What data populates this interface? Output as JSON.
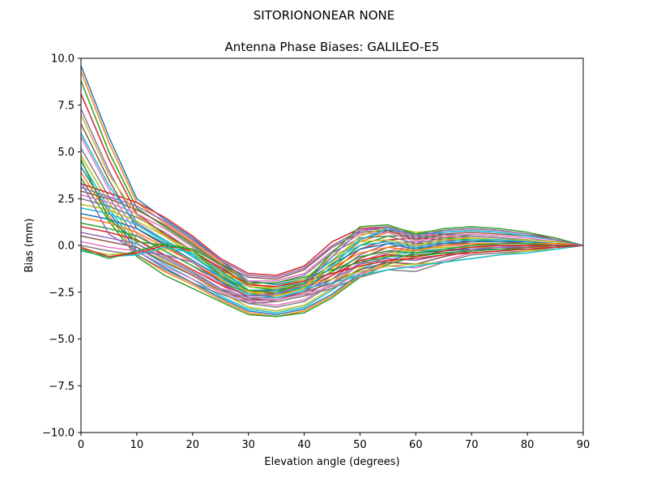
{
  "chart_data": {
    "type": "line",
    "suptitle": "SITORIONONEAR   NONE",
    "title": "Antenna Phase Biases: GALILEO-E5",
    "xlabel": "Elevation angle (degrees)",
    "ylabel": "Bias (mm)",
    "xlim": [
      0,
      90
    ],
    "ylim": [
      -10,
      10
    ],
    "xticks": [
      "0",
      "10",
      "20",
      "30",
      "40",
      "50",
      "60",
      "70",
      "80",
      "90"
    ],
    "yticks": [
      "10.0",
      "7.5",
      "5.0",
      "2.5",
      "0.0",
      "−2.5",
      "−5.0",
      "−7.5",
      "−10.0"
    ],
    "grid": false,
    "legend": "none",
    "x": [
      0,
      5,
      10,
      15,
      20,
      25,
      30,
      35,
      40,
      45,
      50,
      55,
      60,
      65,
      70,
      75,
      80,
      85,
      90
    ],
    "series": [
      {
        "color": "#1f77b4",
        "values": [
          9.6,
          5.8,
          2.5,
          1.4,
          0.4,
          -0.8,
          -1.9,
          -2.1,
          -1.8,
          -0.8,
          0.3,
          0.8,
          0.7,
          0.6,
          0.5,
          0.4,
          0.3,
          0.2,
          0.0
        ]
      },
      {
        "color": "#ff7f0e",
        "values": [
          9.3,
          5.5,
          2.3,
          1.2,
          0.2,
          -0.9,
          -2.0,
          -2.3,
          -2.0,
          -1.0,
          0.2,
          0.7,
          0.6,
          0.5,
          0.4,
          0.3,
          0.2,
          0.1,
          0.0
        ]
      },
      {
        "color": "#2ca02c",
        "values": [
          8.8,
          5.0,
          2.0,
          1.0,
          0.0,
          -1.1,
          -2.2,
          -2.4,
          -2.1,
          -1.2,
          0.0,
          0.5,
          0.5,
          0.4,
          0.3,
          0.2,
          0.2,
          0.1,
          0.0
        ]
      },
      {
        "color": "#d62728",
        "values": [
          8.1,
          4.6,
          1.7,
          0.6,
          -0.3,
          -1.3,
          -2.4,
          -2.6,
          -2.3,
          -1.4,
          -0.2,
          0.3,
          0.4,
          0.3,
          0.2,
          0.2,
          0.1,
          0.1,
          0.0
        ]
      },
      {
        "color": "#9467bd",
        "values": [
          7.3,
          4.0,
          1.2,
          0.3,
          -0.6,
          -1.6,
          -2.6,
          -2.8,
          -2.5,
          -1.6,
          -0.5,
          0.1,
          0.2,
          0.2,
          0.1,
          0.1,
          0.1,
          0.0,
          0.0
        ]
      },
      {
        "color": "#8c564b",
        "values": [
          6.5,
          3.5,
          0.9,
          0.0,
          -0.9,
          -1.9,
          -2.8,
          -3.0,
          -2.7,
          -1.8,
          -0.7,
          -0.1,
          0.1,
          0.1,
          0.1,
          0.0,
          0.0,
          0.0,
          0.0
        ]
      },
      {
        "color": "#e377c2",
        "values": [
          5.8,
          3.0,
          0.6,
          -0.3,
          -1.1,
          -2.1,
          -3.0,
          -3.2,
          -2.9,
          -2.0,
          -0.9,
          -0.3,
          0.0,
          0.0,
          0.0,
          0.0,
          0.0,
          0.0,
          0.0
        ]
      },
      {
        "color": "#7f7f7f",
        "values": [
          5.2,
          2.6,
          0.3,
          -0.6,
          -1.4,
          -2.3,
          -3.1,
          -3.3,
          -3.0,
          -2.1,
          -1.0,
          -0.4,
          -0.1,
          -0.1,
          -0.1,
          -0.1,
          0.0,
          0.0,
          0.0
        ]
      },
      {
        "color": "#bcbd22",
        "values": [
          4.8,
          2.3,
          0.1,
          -0.8,
          -1.6,
          -2.5,
          -3.3,
          -3.5,
          -3.2,
          -2.3,
          -1.2,
          -0.5,
          -0.2,
          -0.1,
          -0.1,
          -0.1,
          -0.1,
          0.0,
          0.0
        ]
      },
      {
        "color": "#17becf",
        "values": [
          4.5,
          2.0,
          -0.1,
          -1.0,
          -1.8,
          -2.7,
          -3.4,
          -3.6,
          -3.3,
          -2.4,
          -1.3,
          -0.6,
          -0.3,
          -0.2,
          -0.2,
          -0.1,
          -0.1,
          0.0,
          0.0
        ]
      },
      {
        "color": "#1f77b4",
        "values": [
          4.2,
          1.8,
          -0.3,
          -1.2,
          -2.0,
          -2.8,
          -3.5,
          -3.7,
          -3.4,
          -2.6,
          -1.5,
          -0.8,
          -0.4,
          -0.3,
          -0.2,
          -0.2,
          -0.1,
          -0.1,
          0.0
        ]
      },
      {
        "color": "#ff7f0e",
        "values": [
          3.9,
          1.6,
          -0.5,
          -1.4,
          -2.1,
          -2.9,
          -3.6,
          -3.8,
          -3.5,
          -2.7,
          -1.6,
          -0.9,
          -0.5,
          -0.4,
          -0.3,
          -0.2,
          -0.1,
          -0.1,
          0.0
        ]
      },
      {
        "color": "#2ca02c",
        "values": [
          3.6,
          1.3,
          -0.6,
          -1.6,
          -2.3,
          -3.0,
          -3.7,
          -3.8,
          -3.6,
          -2.8,
          -1.7,
          -1.0,
          -0.6,
          -0.4,
          -0.3,
          -0.2,
          -0.2,
          -0.1,
          0.0
        ]
      },
      {
        "color": "#d62728",
        "values": [
          3.3,
          2.8,
          2.3,
          1.5,
          0.5,
          -0.7,
          -1.5,
          -1.6,
          -1.1,
          0.2,
          0.9,
          1.0,
          0.5,
          0.8,
          0.9,
          0.8,
          0.6,
          0.4,
          0.0
        ]
      },
      {
        "color": "#9467bd",
        "values": [
          3.1,
          2.6,
          2.1,
          1.3,
          0.3,
          -0.8,
          -1.6,
          -1.7,
          -1.2,
          0.0,
          0.8,
          0.9,
          0.4,
          0.7,
          0.8,
          0.7,
          0.5,
          0.3,
          0.0
        ]
      },
      {
        "color": "#8c564b",
        "values": [
          2.9,
          2.5,
          1.9,
          1.1,
          0.1,
          -1.0,
          -1.7,
          -1.8,
          -1.3,
          -0.1,
          0.7,
          0.8,
          0.3,
          0.6,
          0.7,
          0.6,
          0.5,
          0.3,
          0.0
        ]
      },
      {
        "color": "#e377c2",
        "values": [
          2.7,
          2.3,
          1.7,
          0.9,
          -0.1,
          -1.1,
          -1.9,
          -1.9,
          -1.5,
          -0.3,
          0.6,
          0.7,
          0.2,
          0.5,
          0.6,
          0.5,
          0.4,
          0.2,
          0.0
        ]
      },
      {
        "color": "#7f7f7f",
        "values": [
          2.5,
          2.1,
          1.5,
          0.7,
          -0.3,
          -1.3,
          -2.0,
          -2.0,
          -1.6,
          -0.4,
          0.4,
          0.5,
          0.1,
          0.4,
          0.5,
          0.4,
          0.3,
          0.2,
          0.0
        ]
      },
      {
        "color": "#bcbd22",
        "values": [
          2.2,
          1.9,
          1.3,
          0.5,
          -0.5,
          -1.4,
          -2.1,
          -2.2,
          -1.8,
          -0.6,
          0.2,
          0.3,
          0.0,
          0.3,
          0.4,
          0.3,
          0.3,
          0.2,
          0.0
        ]
      },
      {
        "color": "#17becf",
        "values": [
          2.0,
          1.7,
          1.1,
          0.3,
          -0.6,
          -1.5,
          -2.2,
          -2.3,
          -1.9,
          -0.8,
          0.0,
          0.2,
          -0.1,
          0.2,
          0.3,
          0.3,
          0.2,
          0.1,
          0.0
        ]
      },
      {
        "color": "#1f77b4",
        "values": [
          1.7,
          1.4,
          0.9,
          0.1,
          -0.8,
          -1.7,
          -2.4,
          -2.4,
          -2.0,
          -1.0,
          -0.2,
          0.1,
          -0.2,
          0.1,
          0.2,
          0.2,
          0.2,
          0.1,
          0.0
        ]
      },
      {
        "color": "#ff7f0e",
        "values": [
          1.5,
          1.2,
          0.7,
          -0.1,
          -0.9,
          -1.8,
          -2.5,
          -2.5,
          -2.1,
          -1.2,
          -0.4,
          -0.1,
          -0.3,
          0.0,
          0.1,
          0.1,
          0.1,
          0.1,
          0.0
        ]
      },
      {
        "color": "#2ca02c",
        "values": [
          1.2,
          0.9,
          0.5,
          -0.3,
          -1.1,
          -1.9,
          -2.6,
          -2.6,
          -2.2,
          -1.4,
          -0.6,
          -0.3,
          -0.4,
          -0.2,
          0.0,
          0.1,
          0.1,
          0.0,
          0.0
        ]
      },
      {
        "color": "#d62728",
        "values": [
          1.0,
          0.7,
          0.3,
          -0.5,
          -1.3,
          -2.1,
          -2.7,
          -2.7,
          -2.3,
          -1.6,
          -0.8,
          -0.5,
          -0.6,
          -0.3,
          -0.1,
          0.0,
          0.0,
          0.0,
          0.0
        ]
      },
      {
        "color": "#9467bd",
        "values": [
          0.7,
          0.4,
          0.1,
          -0.7,
          -1.5,
          -2.3,
          -2.8,
          -2.8,
          -2.4,
          -1.8,
          -1.0,
          -0.7,
          -0.8,
          -0.5,
          -0.2,
          -0.1,
          -0.1,
          0.0,
          0.0
        ]
      },
      {
        "color": "#8c564b",
        "values": [
          0.5,
          0.2,
          -0.1,
          -0.9,
          -1.6,
          -2.4,
          -2.9,
          -2.9,
          -2.5,
          -2.0,
          -1.3,
          -0.9,
          -1.0,
          -0.6,
          -0.3,
          -0.2,
          -0.1,
          0.0,
          0.0
        ]
      },
      {
        "color": "#e377c2",
        "values": [
          0.2,
          -0.1,
          -0.3,
          -1.1,
          -1.8,
          -2.5,
          -3.0,
          -2.9,
          -2.6,
          -2.2,
          -1.5,
          -1.1,
          -1.2,
          -0.8,
          -0.4,
          -0.3,
          -0.2,
          -0.1,
          0.0
        ]
      },
      {
        "color": "#7f7f7f",
        "values": [
          0.0,
          -0.3,
          -0.5,
          -1.3,
          -2.0,
          -2.6,
          -3.1,
          -3.0,
          -2.7,
          -2.3,
          -1.7,
          -1.3,
          -1.4,
          -0.9,
          -0.5,
          -0.4,
          -0.3,
          -0.1,
          0.0
        ]
      },
      {
        "color": "#bcbd22",
        "values": [
          -0.2,
          -0.5,
          -0.4,
          -0.2,
          -0.3,
          -1.2,
          -2.2,
          -2.3,
          -2.1,
          -1.8,
          -1.4,
          -1.1,
          -1.0,
          -0.9,
          -0.7,
          -0.5,
          -0.3,
          -0.2,
          0.0
        ]
      },
      {
        "color": "#17becf",
        "values": [
          -0.3,
          -0.6,
          -0.5,
          -0.1,
          -0.4,
          -1.4,
          -2.4,
          -2.5,
          -2.3,
          -2.0,
          -1.6,
          -1.3,
          -1.1,
          -0.9,
          -0.7,
          -0.5,
          -0.4,
          -0.2,
          0.0
        ]
      },
      {
        "color": "#2ca02c",
        "values": [
          -0.2,
          -0.7,
          -0.3,
          0.1,
          -0.2,
          -1.0,
          -2.0,
          -2.0,
          -1.7,
          -1.3,
          -0.9,
          -0.6,
          -0.5,
          -0.4,
          -0.3,
          -0.2,
          -0.2,
          -0.1,
          0.0
        ]
      },
      {
        "color": "#d62728",
        "values": [
          -0.1,
          -0.6,
          -0.4,
          0.0,
          -0.3,
          -1.2,
          -2.1,
          -2.2,
          -1.9,
          -1.5,
          -1.1,
          -0.8,
          -0.7,
          -0.5,
          -0.4,
          -0.3,
          -0.2,
          -0.1,
          0.0
        ]
      },
      {
        "color": "#bcbd22",
        "values": [
          7.0,
          3.8,
          1.6,
          0.5,
          -0.3,
          -1.5,
          -2.5,
          -2.7,
          -2.3,
          -0.9,
          0.5,
          1.0,
          0.7,
          0.8,
          0.9,
          0.8,
          0.6,
          0.3,
          0.0
        ]
      },
      {
        "color": "#17becf",
        "values": [
          6.0,
          3.2,
          1.1,
          0.2,
          -0.5,
          -1.7,
          -2.6,
          -2.8,
          -2.4,
          -1.1,
          0.3,
          0.9,
          0.6,
          0.7,
          0.8,
          0.7,
          0.5,
          0.3,
          0.0
        ]
      },
      {
        "color": "#2ca02c",
        "values": [
          4.6,
          1.4,
          0.2,
          0.0,
          -0.2,
          -1.6,
          -2.4,
          -2.5,
          -2.0,
          -0.4,
          1.0,
          1.1,
          0.6,
          0.9,
          1.0,
          0.9,
          0.7,
          0.4,
          0.0
        ]
      },
      {
        "color": "#9467bd",
        "values": [
          3.4,
          0.6,
          -0.3,
          -0.5,
          -0.9,
          -2.0,
          -2.7,
          -2.6,
          -2.1,
          -0.6,
          0.8,
          1.0,
          0.5,
          0.8,
          0.9,
          0.8,
          0.6,
          0.3,
          0.0
        ]
      }
    ]
  }
}
